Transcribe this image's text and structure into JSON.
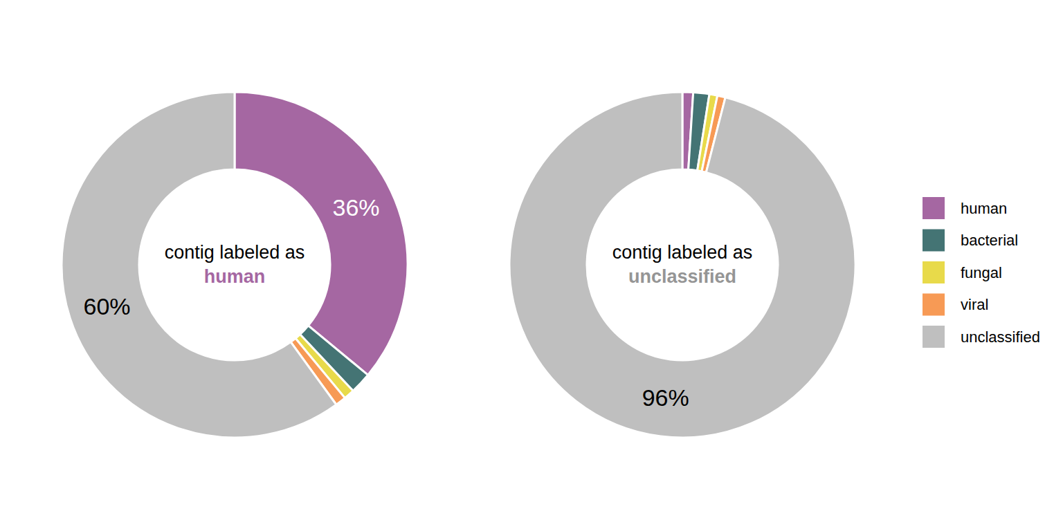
{
  "chart_data": [
    {
      "type": "pie",
      "title": "contig labeled as",
      "subtitle": "human",
      "categories": [
        "human",
        "bacterial",
        "fungal",
        "viral",
        "unclassified"
      ],
      "values": [
        36,
        2,
        1,
        1,
        60
      ],
      "value_labels": [
        "36%",
        null,
        null,
        null,
        "60%"
      ],
      "colors": [
        "#a567a2",
        "#447474",
        "#e8da4a",
        "#f79a55",
        "#bfbfbf"
      ],
      "legend": "right"
    },
    {
      "type": "pie",
      "title": "contig labeled as",
      "subtitle": "unclassified",
      "categories": [
        "human",
        "bacterial",
        "fungal",
        "viral",
        "unclassified"
      ],
      "values": [
        1,
        1.5,
        0.75,
        0.75,
        96
      ],
      "value_labels": [
        null,
        null,
        null,
        null,
        "96%"
      ],
      "colors": [
        "#a567a2",
        "#447474",
        "#e8da4a",
        "#f79a55",
        "#bfbfbf"
      ]
    }
  ]
}
